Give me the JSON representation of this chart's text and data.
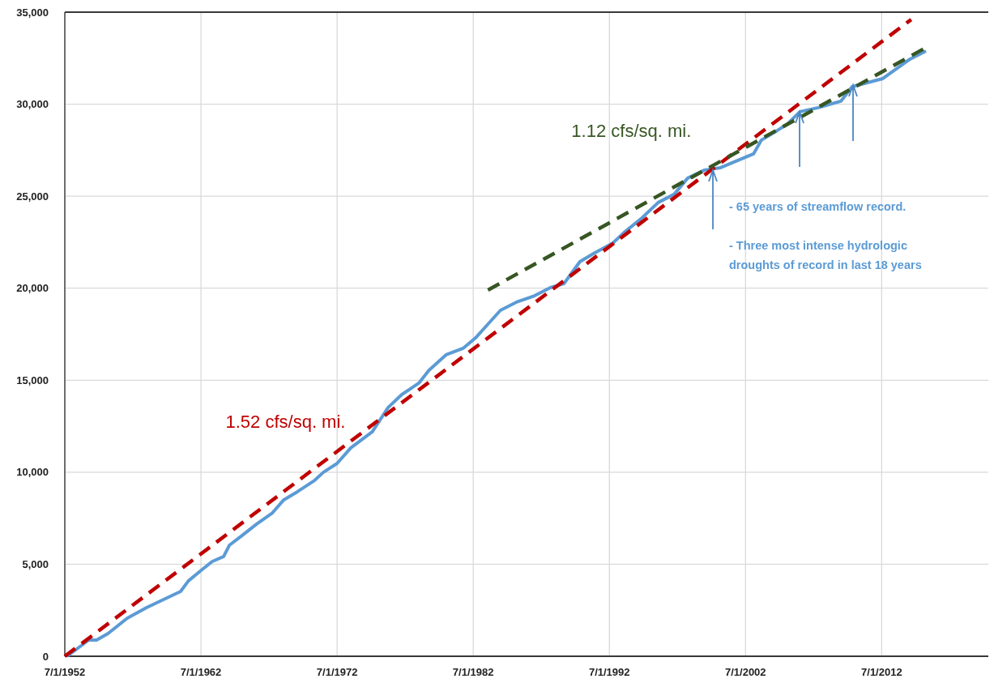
{
  "chart_data": {
    "type": "line",
    "xlim": [
      "1952-07-01",
      "2020-05-01"
    ],
    "xticks": [
      {
        "value": "1952-07-01",
        "label": "7/1/1952"
      },
      {
        "value": "1962-07-01",
        "label": "7/1/1962"
      },
      {
        "value": "1972-07-01",
        "label": "7/1/1972"
      },
      {
        "value": "1982-07-01",
        "label": "7/1/1982"
      },
      {
        "value": "1992-07-01",
        "label": "7/1/1992"
      },
      {
        "value": "2002-07-01",
        "label": "7/1/2002"
      },
      {
        "value": "2012-07-01",
        "label": "7/1/2012"
      }
    ],
    "ylim": [
      0,
      35000
    ],
    "yticks": [
      0,
      {
        "value": 5000,
        "label": "5,000"
      },
      {
        "value": 10000,
        "label": "10,000"
      },
      {
        "value": 15000,
        "label": "15,000"
      },
      {
        "value": 20000,
        "label": "20,000"
      },
      {
        "value": 25000,
        "label": "25,000"
      },
      {
        "value": 30000,
        "label": "30,000"
      },
      {
        "value": 35000,
        "label": "35,000"
      }
    ],
    "grid": true,
    "series": [
      {
        "color": "#5b9bd5",
        "line_style": "solid",
        "x": [
          "1952-09",
          "1954-04",
          "1954-11",
          "1955-09",
          "1957-02",
          "1958-07",
          "1959-10",
          "1961-01",
          "1961-08",
          "1962-08",
          "1963-05",
          "1964-03",
          "1964-08",
          "1965-08",
          "1966-08",
          "1967-10",
          "1968-08",
          "1969-08",
          "1970-11",
          "1971-07",
          "1972-07",
          "1973-07",
          "1975-02",
          "1976-04",
          "1977-04",
          "1978-07",
          "1979-04",
          "1980-07",
          "1981-10",
          "1982-09",
          "1983-08",
          "1984-07",
          "1985-09",
          "1987-01",
          "1988-03",
          "1989-03",
          "1990-05",
          "1991-05",
          "1992-10",
          "1993-08",
          "1994-11",
          "1996-02",
          "1997-04",
          "1998-04",
          "1999-07",
          "2000-09",
          "2002-02",
          "2003-02",
          "2003-09",
          "2004-09",
          "2005-08",
          "2006-07",
          "2007-11",
          "2009-07",
          "2010-05",
          "2012-08",
          "2013-10",
          "2014-08",
          "2015-10"
        ],
        "values": [
          0,
          880,
          880,
          1230,
          2070,
          2640,
          3080,
          3520,
          4100,
          4710,
          5150,
          5420,
          6030,
          6600,
          7180,
          7790,
          8500,
          8940,
          9550,
          10000,
          10480,
          11320,
          12200,
          13520,
          14220,
          14840,
          15540,
          16380,
          16730,
          17300,
          18050,
          18800,
          19240,
          19590,
          20030,
          20250,
          21440,
          21880,
          22450,
          23030,
          23780,
          24660,
          25100,
          25980,
          26420,
          26550,
          26990,
          27300,
          28050,
          28490,
          28930,
          29590,
          29810,
          30160,
          30950,
          31390,
          32010,
          32450,
          32890
        ]
      },
      {
        "name": "1.52 cfs/sq. mi.",
        "color": "#c00000",
        "line_style": "dashed",
        "x": [
          "1952-07",
          "2014-09"
        ],
        "values": [
          0,
          34600
        ]
      },
      {
        "name": "1.12 cfs/sq. mi.",
        "color": "#375623",
        "line_style": "dashed",
        "x": [
          "1983-08",
          "2015-11"
        ],
        "values": [
          19900,
          33110
        ]
      }
    ],
    "annotations": [
      "- 65 years of streamflow record.",
      "- Three most intense hydrologic droughts of record in last 18 years"
    ]
  }
}
